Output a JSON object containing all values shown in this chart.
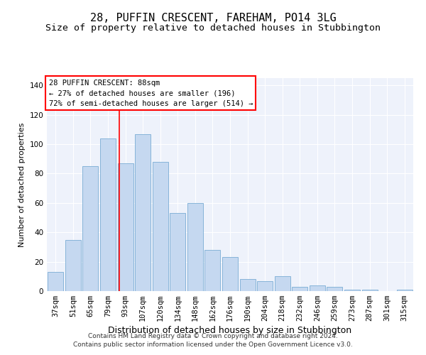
{
  "title": "28, PUFFIN CRESCENT, FAREHAM, PO14 3LG",
  "subtitle": "Size of property relative to detached houses in Stubbington",
  "xlabel": "Distribution of detached houses by size in Stubbington",
  "ylabel": "Number of detached properties",
  "categories": [
    "37sqm",
    "51sqm",
    "65sqm",
    "79sqm",
    "93sqm",
    "107sqm",
    "120sqm",
    "134sqm",
    "148sqm",
    "162sqm",
    "176sqm",
    "190sqm",
    "204sqm",
    "218sqm",
    "232sqm",
    "246sqm",
    "259sqm",
    "273sqm",
    "287sqm",
    "301sqm",
    "315sqm"
  ],
  "values": [
    13,
    35,
    85,
    104,
    87,
    107,
    88,
    53,
    60,
    28,
    23,
    8,
    7,
    10,
    3,
    4,
    3,
    1,
    1,
    0,
    1
  ],
  "bar_color": "#c5d8f0",
  "bar_edge_color": "#7aadd4",
  "background_color": "#eef2fb",
  "annotation_box_text": "28 PUFFIN CRESCENT: 88sqm\n← 27% of detached houses are smaller (196)\n72% of semi-detached houses are larger (514) →",
  "ylim": [
    0,
    145
  ],
  "footer_line1": "Contains HM Land Registry data © Crown copyright and database right 2024.",
  "footer_line2": "Contains public sector information licensed under the Open Government Licence v3.0.",
  "title_fontsize": 11,
  "subtitle_fontsize": 9.5,
  "xlabel_fontsize": 9,
  "ylabel_fontsize": 8,
  "tick_fontsize": 7.5,
  "annotation_fontsize": 7.5,
  "footer_fontsize": 6.5
}
